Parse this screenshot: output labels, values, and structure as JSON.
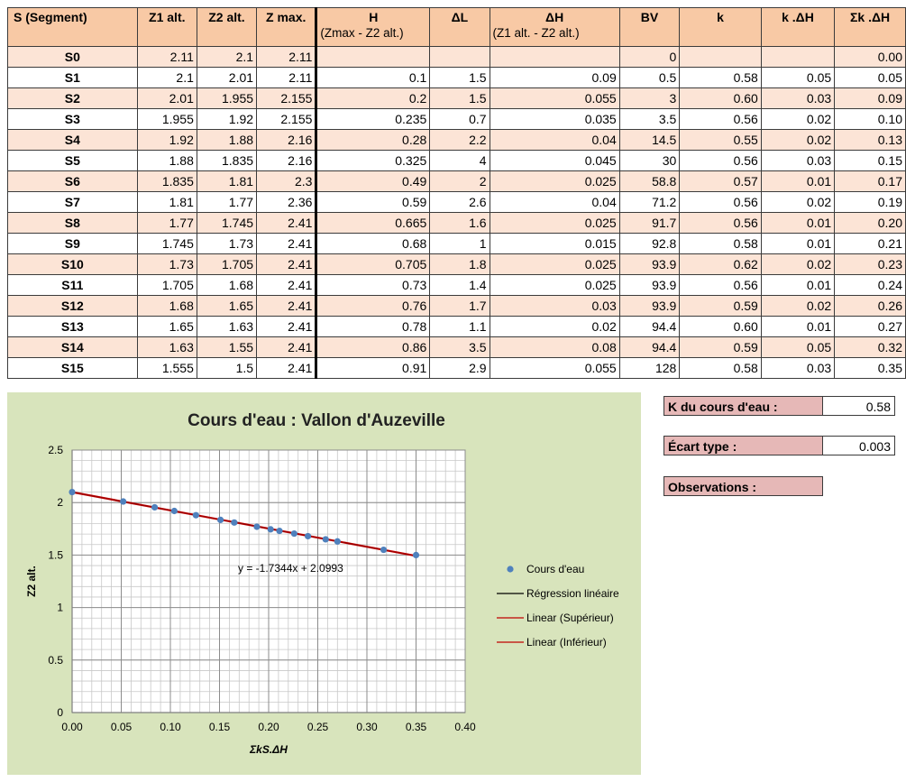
{
  "table": {
    "headers": [
      {
        "label": "S (Segment)",
        "sub": ""
      },
      {
        "label": "Z1 alt.",
        "sub": ""
      },
      {
        "label": "Z2 alt.",
        "sub": ""
      },
      {
        "label": "Z max.",
        "sub": ""
      },
      {
        "label": "H",
        "sub": "(Zmax - Z2 alt.)"
      },
      {
        "label": "ΔL",
        "sub": ""
      },
      {
        "label": "ΔH",
        "sub": "(Z1 alt. - Z2 alt.)"
      },
      {
        "label": "BV",
        "sub": ""
      },
      {
        "label": "k",
        "sub": ""
      },
      {
        "label": "k .ΔH",
        "sub": ""
      },
      {
        "label": "Σk .ΔH",
        "sub": ""
      }
    ],
    "rows": [
      [
        "S0",
        "2.11",
        "2.1",
        "2.11",
        "",
        "",
        "",
        "0",
        "",
        "",
        "0.00"
      ],
      [
        "S1",
        "2.1",
        "2.01",
        "2.11",
        "0.1",
        "1.5",
        "0.09",
        "0.5",
        "0.58",
        "0.05",
        "0.05"
      ],
      [
        "S2",
        "2.01",
        "1.955",
        "2.155",
        "0.2",
        "1.5",
        "0.055",
        "3",
        "0.60",
        "0.03",
        "0.09"
      ],
      [
        "S3",
        "1.955",
        "1.92",
        "2.155",
        "0.235",
        "0.7",
        "0.035",
        "3.5",
        "0.56",
        "0.02",
        "0.10"
      ],
      [
        "S4",
        "1.92",
        "1.88",
        "2.16",
        "0.28",
        "2.2",
        "0.04",
        "14.5",
        "0.55",
        "0.02",
        "0.13"
      ],
      [
        "S5",
        "1.88",
        "1.835",
        "2.16",
        "0.325",
        "4",
        "0.045",
        "30",
        "0.56",
        "0.03",
        "0.15"
      ],
      [
        "S6",
        "1.835",
        "1.81",
        "2.3",
        "0.49",
        "2",
        "0.025",
        "58.8",
        "0.57",
        "0.01",
        "0.17"
      ],
      [
        "S7",
        "1.81",
        "1.77",
        "2.36",
        "0.59",
        "2.6",
        "0.04",
        "71.2",
        "0.56",
        "0.02",
        "0.19"
      ],
      [
        "S8",
        "1.77",
        "1.745",
        "2.41",
        "0.665",
        "1.6",
        "0.025",
        "91.7",
        "0.56",
        "0.01",
        "0.20"
      ],
      [
        "S9",
        "1.745",
        "1.73",
        "2.41",
        "0.68",
        "1",
        "0.015",
        "92.8",
        "0.58",
        "0.01",
        "0.21"
      ],
      [
        "S10",
        "1.73",
        "1.705",
        "2.41",
        "0.705",
        "1.8",
        "0.025",
        "93.9",
        "0.62",
        "0.02",
        "0.23"
      ],
      [
        "S11",
        "1.705",
        "1.68",
        "2.41",
        "0.73",
        "1.4",
        "0.025",
        "93.9",
        "0.56",
        "0.01",
        "0.24"
      ],
      [
        "S12",
        "1.68",
        "1.65",
        "2.41",
        "0.76",
        "1.7",
        "0.03",
        "93.9",
        "0.59",
        "0.02",
        "0.26"
      ],
      [
        "S13",
        "1.65",
        "1.63",
        "2.41",
        "0.78",
        "1.1",
        "0.02",
        "94.4",
        "0.60",
        "0.01",
        "0.27"
      ],
      [
        "S14",
        "1.63",
        "1.55",
        "2.41",
        "0.86",
        "3.5",
        "0.08",
        "94.4",
        "0.59",
        "0.05",
        "0.32"
      ],
      [
        "S15",
        "1.555",
        "1.5",
        "2.41",
        "0.91",
        "2.9",
        "0.055",
        "128",
        "0.58",
        "0.03",
        "0.35"
      ]
    ]
  },
  "summary": {
    "k_label": "K du cours d'eau :",
    "k_value": "0.58",
    "ecart_label": "Écart type :",
    "ecart_value": "0.003",
    "obs_label": "Observations :"
  },
  "chart_data": {
    "type": "scatter",
    "title": "Cours d'eau : Vallon d'Auzeville",
    "xlabel": "ΣkS.ΔH",
    "ylabel": "Z2 alt.",
    "xlim": [
      0,
      0.4
    ],
    "ylim": [
      0,
      2.5
    ],
    "xticks": [
      "0.00",
      "0.05",
      "0.10",
      "0.15",
      "0.20",
      "0.25",
      "0.30",
      "0.35",
      "0.40"
    ],
    "yticks": [
      "0",
      "0.5",
      "1",
      "1.5",
      "2",
      "2.5"
    ],
    "series": [
      {
        "name": "Cours d'eau",
        "x": [
          0,
          0.052,
          0.084,
          0.104,
          0.126,
          0.151,
          0.165,
          0.188,
          0.202,
          0.211,
          0.226,
          0.24,
          0.258,
          0.27,
          0.317,
          0.35
        ],
        "y": [
          2.1,
          2.01,
          1.955,
          1.92,
          1.88,
          1.835,
          1.81,
          1.77,
          1.745,
          1.73,
          1.705,
          1.68,
          1.65,
          1.63,
          1.55,
          1.5
        ]
      }
    ],
    "regression": {
      "slope": -1.7344,
      "intercept": 2.0993,
      "x_range": [
        0,
        0.35
      ]
    },
    "equation": "y = -1.7344x + 2.0993",
    "legend": [
      {
        "label": "Cours d'eau",
        "kind": "marker",
        "color": "#4f81bd"
      },
      {
        "label": "Régression linéaire",
        "kind": "line",
        "color": "#000000"
      },
      {
        "label": "Linear (Supérieur)",
        "kind": "line",
        "color": "#c00000"
      },
      {
        "label": "Linear (Inférieur)",
        "kind": "line",
        "color": "#c00000"
      }
    ],
    "colors": {
      "marker": "#4f81bd",
      "regression": "#000000",
      "bounds": "#c00000",
      "background": "#d8e4bc"
    }
  }
}
